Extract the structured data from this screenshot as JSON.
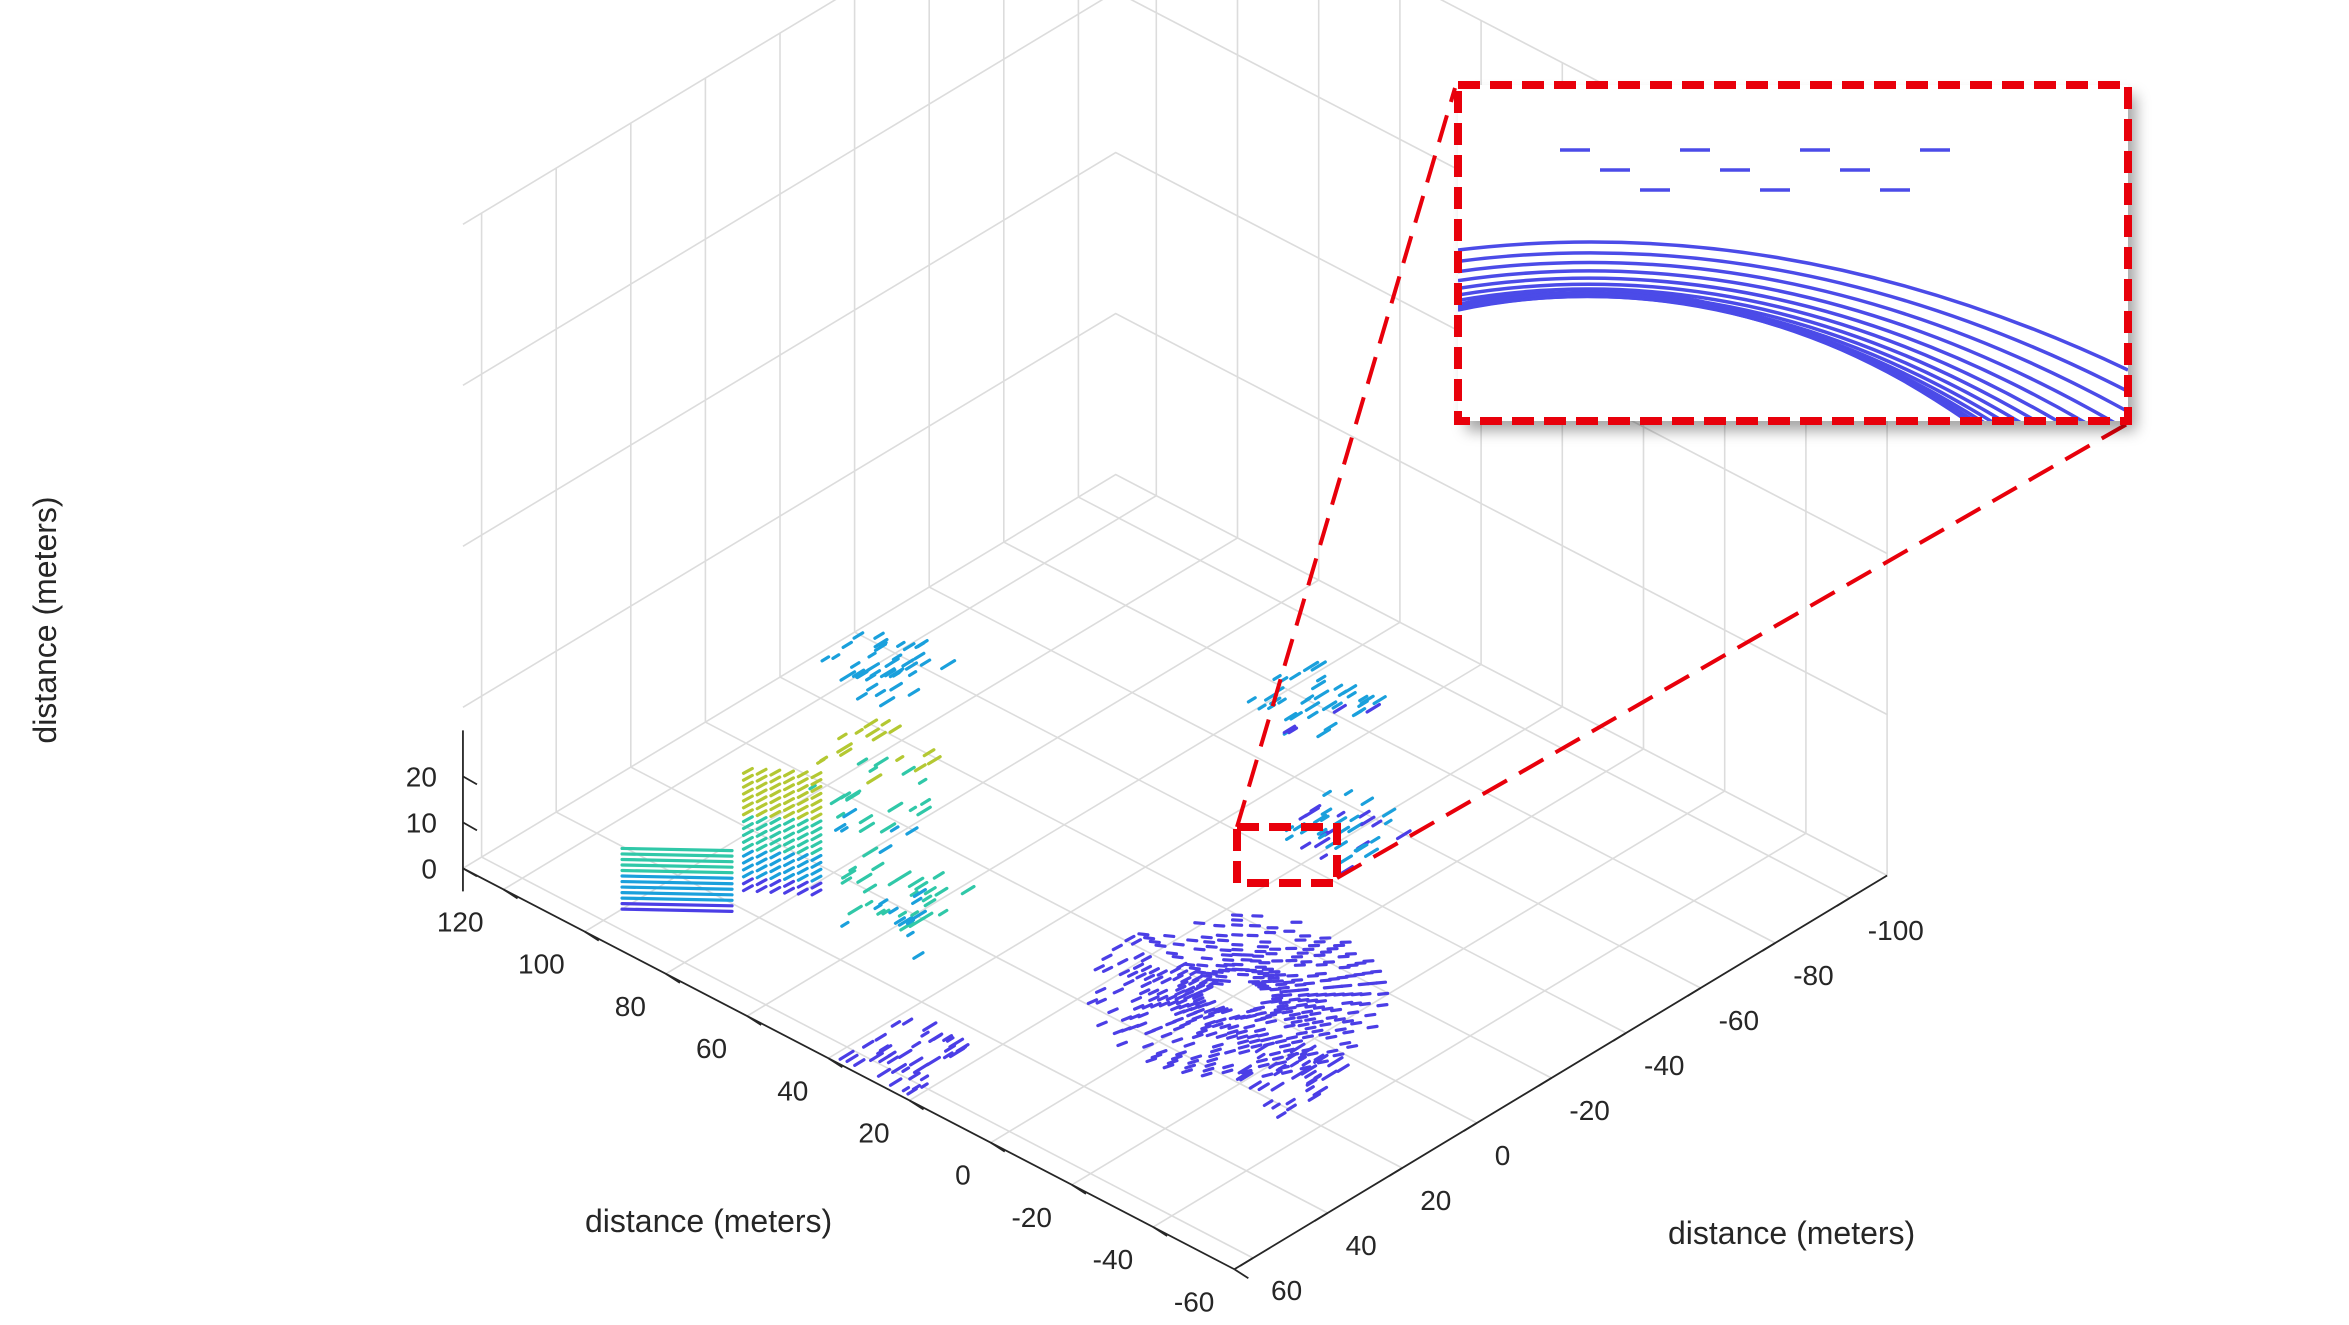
{
  "chart_data": {
    "type": "scatter",
    "subtype": "3d-lidar-point-cloud",
    "colormap": "parula",
    "x_axis": {
      "label": "distance (meters)",
      "ticks": [
        "-60",
        "-40",
        "-20",
        "0",
        "20",
        "40",
        "60",
        "80",
        "100",
        "120"
      ],
      "range": [
        -60,
        130
      ]
    },
    "y_axis": {
      "label": "distance (meters)",
      "ticks": [
        "60",
        "40",
        "20",
        "0",
        "-20",
        "-40",
        "-60",
        "-80",
        "-100"
      ],
      "range": [
        -110,
        65
      ]
    },
    "z_axis": {
      "label": "distance (meters)",
      "ticks": [
        "0",
        "10",
        "20"
      ],
      "range": [
        -3,
        27
      ]
    },
    "grid": true,
    "point_color_range": [
      "#4b3ee6",
      "#1aa0dc",
      "#30c8a8",
      "#b4c832"
    ],
    "inset": {
      "description": "zoomed view of ground rings near sensor",
      "border_color": "#e8000b",
      "line_color": "#4b4be8"
    },
    "clusters": [
      {
        "id": "sensor-rings",
        "x": 0,
        "y": 0,
        "z": 0
      },
      {
        "id": "building-wall-a",
        "x": 55,
        "y": 30,
        "z": 10
      },
      {
        "id": "building-wall-b",
        "x": 80,
        "y": 10,
        "z": 15
      },
      {
        "id": "road-edge-left",
        "x": 30,
        "y": 55,
        "z": 0
      },
      {
        "id": "far-structure",
        "x": 115,
        "y": -30,
        "z": 5
      },
      {
        "id": "trees-right",
        "x": 20,
        "y": -50,
        "z": 3
      },
      {
        "id": "trees-far-right",
        "x": 50,
        "y": -75,
        "z": 4
      },
      {
        "id": "pedestrians-near",
        "x": -25,
        "y": 15,
        "z": 1
      }
    ]
  }
}
